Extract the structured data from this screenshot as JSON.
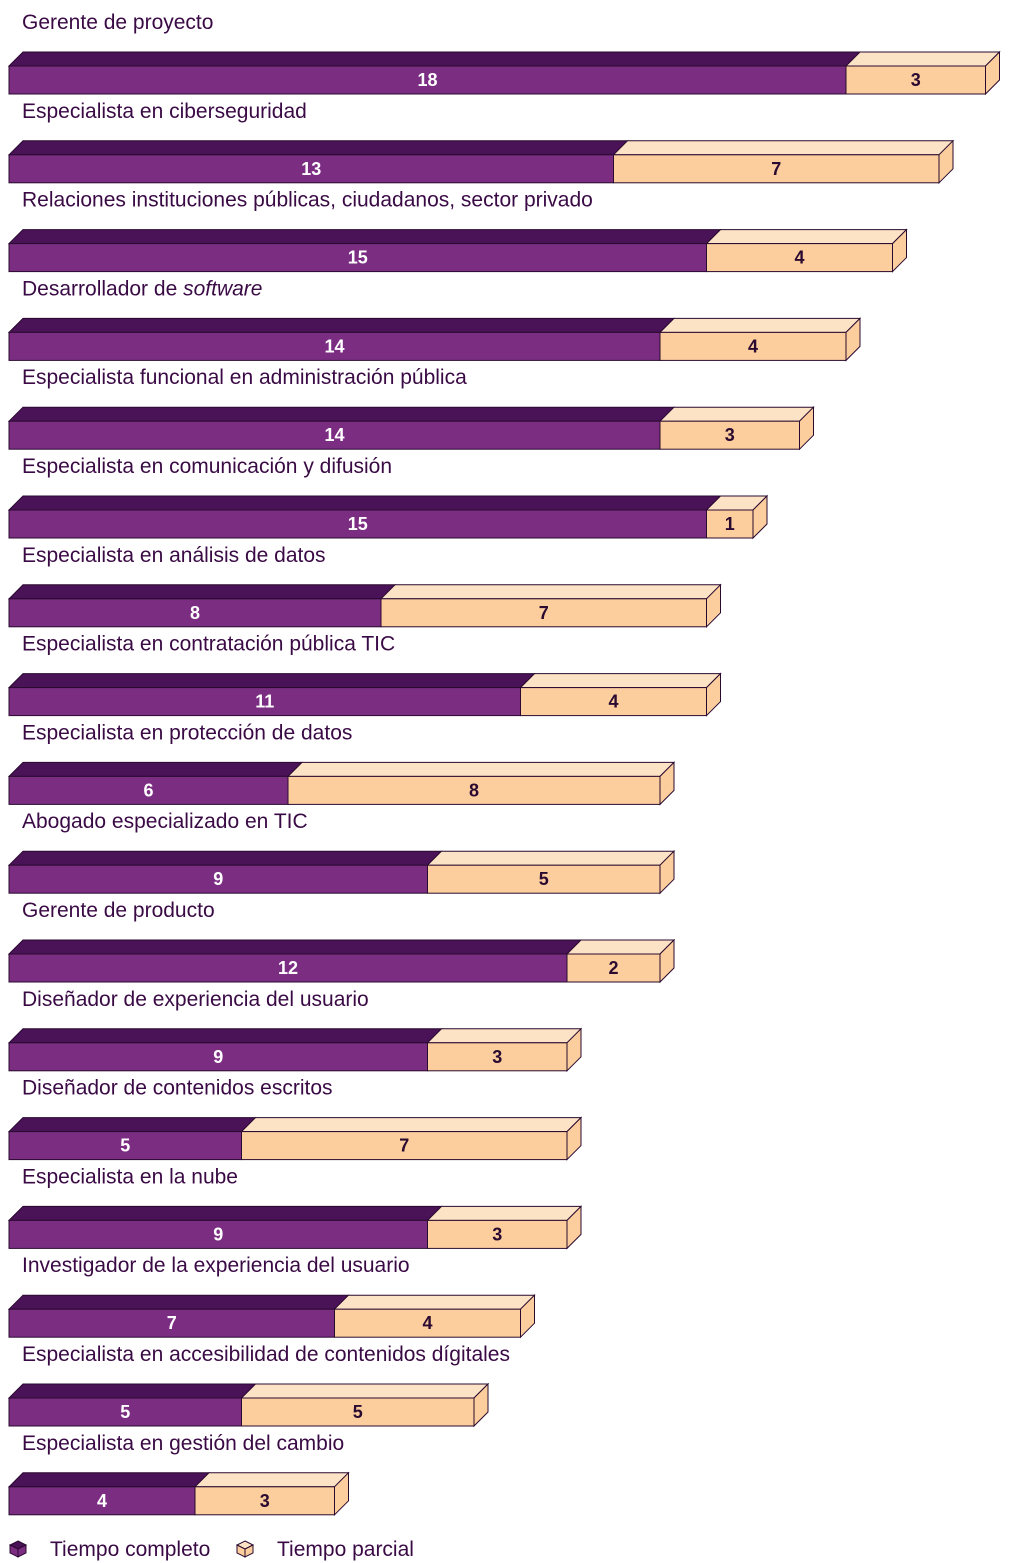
{
  "chart_data": {
    "type": "bar",
    "orientation": "horizontal",
    "stacked": true,
    "categories": [
      "Gerente de proyecto",
      "Especialista en ciberseguridad",
      "Relaciones instituciones públicas, ciudadanos, sector privado",
      "Desarrollador de software",
      "Especialista funcional en administración pública",
      "Especialista en comunicación y difusión",
      "Especialista en análisis de datos",
      "Especialista en contratación pública TIC",
      "Especialista en protección de datos",
      "Abogado especializado en TIC",
      "Gerente de producto",
      "Diseñador de experiencia del usuario",
      "Diseñador de contenidos escritos",
      "Especialista en la nube",
      "Investigador de la experiencia del usuario",
      "Especialista en accesibilidad de contenidos dígitales",
      "Especialista en gestión del cambio"
    ],
    "italic_terms": [
      "software"
    ],
    "series": [
      {
        "name": "Tiempo completo",
        "color": "#7b2d82",
        "top_color": "#4a1257",
        "values": [
          18,
          13,
          15,
          14,
          14,
          15,
          8,
          11,
          6,
          9,
          12,
          9,
          5,
          9,
          7,
          5,
          4
        ]
      },
      {
        "name": "Tiempo parcial",
        "color": "#fcce9d",
        "top_color": "#fde3c6",
        "values": [
          3,
          7,
          4,
          4,
          3,
          1,
          7,
          4,
          8,
          5,
          2,
          3,
          7,
          3,
          4,
          5,
          3
        ]
      }
    ],
    "legend": {
      "position": "bottom-left",
      "items": [
        "Tiempo completo",
        "Tiempo parcial"
      ]
    },
    "value_labels": true,
    "grid": false
  },
  "colors": {
    "label_text": "#3a0a45",
    "outline": "#2a0a30",
    "full_value_text": "#ffffff",
    "part_value_text": "#2a0a30"
  }
}
